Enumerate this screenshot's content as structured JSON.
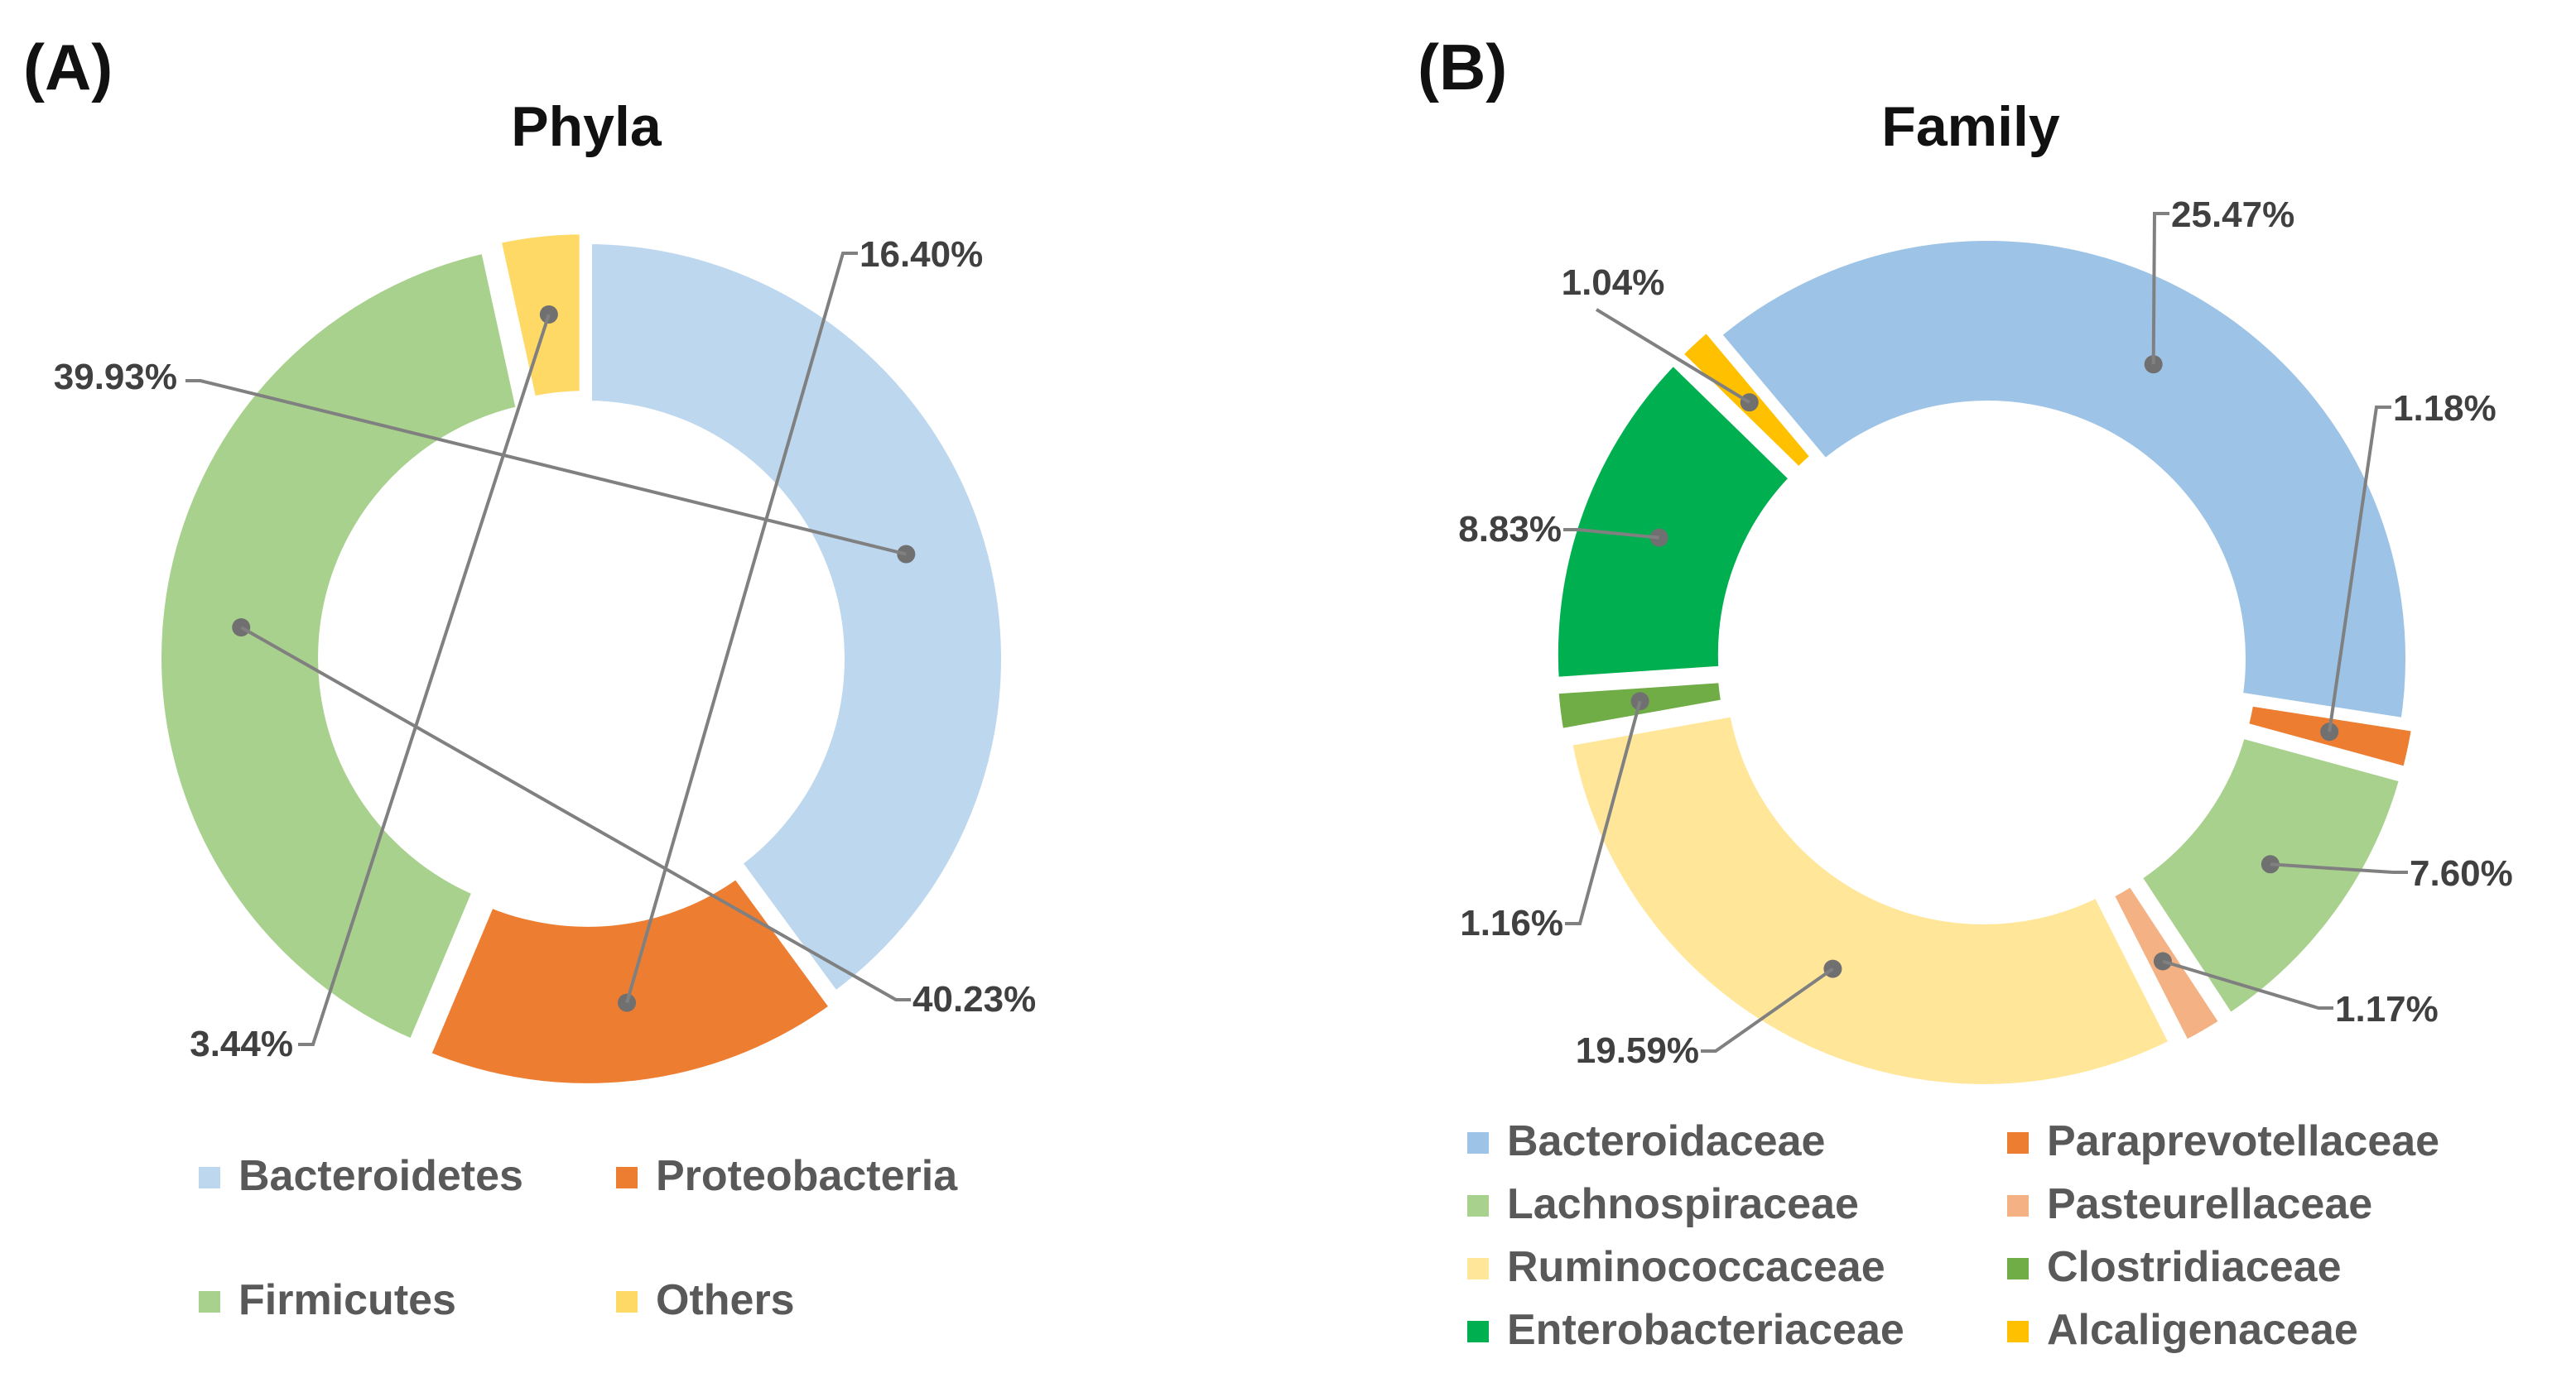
{
  "chart_data": [
    {
      "type": "donut",
      "panel_label": "(A)",
      "title": "Phyla",
      "legend_position": "bottom",
      "series": [
        {
          "name": "Bacteroidetes",
          "value": 39.93,
          "label": "39.93%",
          "color": "#bdd7ee"
        },
        {
          "name": "Proteobacteria",
          "value": 16.4,
          "label": "16.40%",
          "color": "#ed7d31"
        },
        {
          "name": "Firmicutes",
          "value": 40.23,
          "label": "40.23%",
          "color": "#a9d18e"
        },
        {
          "name": "Others",
          "value": 3.44,
          "label": "3.44%",
          "color": "#ffd966"
        }
      ]
    },
    {
      "type": "donut",
      "panel_label": "(B)",
      "title": "Family",
      "legend_position": "bottom",
      "series": [
        {
          "name": "Bacteroidaceae",
          "value": 25.47,
          "label": "25.47%",
          "color": "#9dc3e6"
        },
        {
          "name": "Paraprevotellaceae",
          "value": 1.18,
          "label": "1.18%",
          "color": "#ed7d31"
        },
        {
          "name": "Lachnospiraceae",
          "value": 7.6,
          "label": "7.60%",
          "color": "#a9d18e"
        },
        {
          "name": "Pasteurellaceae",
          "value": 1.17,
          "label": "1.17%",
          "color": "#f4b183"
        },
        {
          "name": "Ruminococcaceae",
          "value": 19.59,
          "label": "19.59%",
          "color": "#ffe699"
        },
        {
          "name": "Clostridiaceae",
          "value": 1.16,
          "label": "1.16%",
          "color": "#70ad47"
        },
        {
          "name": "Enterobacteriaceae",
          "value": 8.83,
          "label": "8.83%",
          "color": "#00b050"
        },
        {
          "name": "Alcaligenaceae",
          "value": 1.04,
          "label": "1.04%",
          "color": "#ffc000"
        }
      ]
    }
  ]
}
